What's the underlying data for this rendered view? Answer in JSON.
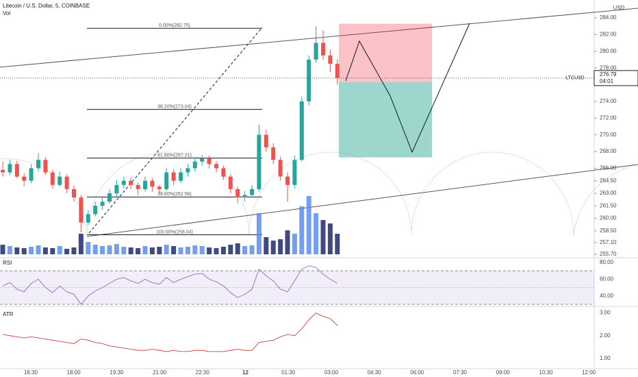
{
  "chart_data": {
    "type": "candlestick",
    "title": "Litecoin / U.S. Dollar, 5, COINBASE",
    "volume_label": "Vol",
    "currency": "USD",
    "symbol": "LTCUSD",
    "last_price": 276.79,
    "countdown": "04:01",
    "colors": {
      "up": "#26a69a",
      "down": "#ef5350",
      "vol_up": "#5b8def",
      "vol_down": "#1c2a6b",
      "rsi": "#7e57c2",
      "atr": "#c62828"
    },
    "ohlc": [
      [
        265.8,
        266.8,
        265.0,
        265.5
      ],
      [
        265.5,
        267.0,
        265.2,
        266.5
      ],
      [
        266.5,
        266.9,
        264.8,
        265.0
      ],
      [
        265.0,
        265.4,
        263.8,
        264.5
      ],
      [
        264.5,
        266.5,
        264.2,
        266.0
      ],
      [
        266.0,
        267.8,
        265.6,
        267.0
      ],
      [
        267.0,
        267.3,
        265.2,
        265.5
      ],
      [
        265.5,
        265.8,
        263.6,
        264.0
      ],
      [
        264.0,
        265.6,
        263.8,
        265.0
      ],
      [
        265.0,
        265.3,
        263.0,
        263.5
      ],
      [
        263.5,
        263.9,
        262.0,
        262.5
      ],
      [
        262.5,
        262.8,
        258.3,
        259.5
      ],
      [
        259.5,
        261.0,
        259.2,
        260.5
      ],
      [
        260.5,
        262.0,
        260.2,
        261.5
      ],
      [
        261.5,
        262.6,
        261.0,
        262.0
      ],
      [
        262.0,
        263.5,
        261.8,
        263.0
      ],
      [
        263.0,
        264.6,
        262.6,
        264.0
      ],
      [
        264.0,
        265.0,
        263.6,
        264.5
      ],
      [
        264.5,
        264.9,
        263.5,
        264.0
      ],
      [
        264.0,
        264.3,
        262.8,
        263.5
      ],
      [
        263.5,
        265.0,
        263.2,
        264.5
      ],
      [
        264.5,
        264.8,
        263.2,
        263.8
      ],
      [
        263.8,
        264.0,
        262.8,
        263.5
      ],
      [
        263.5,
        266.0,
        263.3,
        265.5
      ],
      [
        265.5,
        265.9,
        264.0,
        264.5
      ],
      [
        264.5,
        266.0,
        264.2,
        265.5
      ],
      [
        265.5,
        266.5,
        265.0,
        266.0
      ],
      [
        266.0,
        267.3,
        265.6,
        266.8
      ],
      [
        266.8,
        267.6,
        266.3,
        267.2
      ],
      [
        267.2,
        267.5,
        266.0,
        266.5
      ],
      [
        266.5,
        266.8,
        265.5,
        266.0
      ],
      [
        266.0,
        266.3,
        264.6,
        265.0
      ],
      [
        265.0,
        265.3,
        263.0,
        263.5
      ],
      [
        263.5,
        263.8,
        261.8,
        262.5
      ],
      [
        262.5,
        263.3,
        262.0,
        262.8
      ],
      [
        262.8,
        264.0,
        262.5,
        263.5
      ],
      [
        263.5,
        271.2,
        263.2,
        270.0
      ],
      [
        270.0,
        270.6,
        268.0,
        268.5
      ],
      [
        268.5,
        269.0,
        266.5,
        267.0
      ],
      [
        267.0,
        267.4,
        264.5,
        265.0
      ],
      [
        265.0,
        265.5,
        262.0,
        264.0
      ],
      [
        264.0,
        267.5,
        263.6,
        267.0
      ],
      [
        267.0,
        274.6,
        266.8,
        274.0
      ],
      [
        274.0,
        279.5,
        273.5,
        279.0
      ],
      [
        279.0,
        283.0,
        278.6,
        281.0
      ],
      [
        281.0,
        282.5,
        279.0,
        279.5
      ],
      [
        279.5,
        280.2,
        277.5,
        278.5
      ],
      [
        278.5,
        279.0,
        276.0,
        276.8
      ]
    ],
    "volume": [
      14,
      12,
      10,
      9,
      11,
      13,
      10,
      9,
      12,
      8,
      10,
      30,
      18,
      14,
      12,
      13,
      15,
      11,
      10,
      9,
      12,
      10,
      11,
      14,
      12,
      10,
      11,
      13,
      12,
      10,
      9,
      11,
      14,
      16,
      12,
      13,
      60,
      25,
      20,
      22,
      35,
      30,
      70,
      85,
      60,
      50,
      45,
      30
    ],
    "ylim": [
      255.7,
      284.0
    ],
    "yticks": [
      {
        "value": 284,
        "label": "284.00"
      },
      {
        "value": 282,
        "label": "282.00"
      },
      {
        "value": 280,
        "label": "280.00"
      },
      {
        "value": 278,
        "label": "278.00"
      },
      {
        "value": 274,
        "label": "274.00"
      },
      {
        "value": 272,
        "label": "272.00"
      },
      {
        "value": 270,
        "label": "270.00"
      },
      {
        "value": 268,
        "label": "268.00"
      },
      {
        "value": 266,
        "label": "266.00"
      },
      {
        "value": 264.5,
        "label": "264.50"
      },
      {
        "value": 263,
        "label": "263.00"
      },
      {
        "value": 261.5,
        "label": "261.50"
      },
      {
        "value": 260,
        "label": "260.00"
      },
      {
        "value": 258.5,
        "label": "258.50"
      },
      {
        "value": 257.1,
        "label": "257.10"
      },
      {
        "value": 255.7,
        "label": "255.70"
      }
    ],
    "fib_levels": [
      {
        "value": 282.75,
        "label": "0.00%(282.75)"
      },
      {
        "value": 273.04,
        "label": "38.20%(273.04)"
      },
      {
        "value": 267.21,
        "label": "61.80%(267.21)"
      },
      {
        "value": 262.56,
        "label": "78.60%(262.56)"
      },
      {
        "value": 258.04,
        "label": "100.00%(258.04)"
      }
    ],
    "position": {
      "stop": 283.3,
      "entry": 276.3,
      "target": 267.3
    },
    "rsi_label": "RSI",
    "rsi": [
      52,
      56,
      48,
      45,
      55,
      60,
      50,
      44,
      52,
      45,
      42,
      30,
      40,
      46,
      50,
      55,
      60,
      62,
      58,
      55,
      60,
      56,
      54,
      62,
      56,
      60,
      63,
      66,
      67,
      60,
      57,
      52,
      44,
      38,
      42,
      48,
      72,
      64,
      58,
      48,
      45,
      58,
      72,
      76,
      74,
      66,
      60,
      55
    ],
    "rsi_ylim": [
      30,
      84
    ],
    "rsi_yticks": [
      {
        "value": 80,
        "label": "80.00"
      },
      {
        "value": 60,
        "label": "60.00"
      },
      {
        "value": 40,
        "label": "40.00"
      }
    ],
    "rsi_band": [
      30,
      70
    ],
    "rsi_mid": 50,
    "atr_label": "ATR",
    "atr": [
      2.05,
      2.0,
      1.95,
      1.9,
      1.95,
      1.9,
      1.85,
      1.8,
      1.75,
      1.7,
      1.65,
      1.85,
      1.8,
      1.7,
      1.65,
      1.55,
      1.5,
      1.45,
      1.4,
      1.35,
      1.35,
      1.4,
      1.35,
      1.3,
      1.35,
      1.3,
      1.3,
      1.35,
      1.35,
      1.3,
      1.3,
      1.3,
      1.35,
      1.4,
      1.35,
      1.35,
      1.7,
      1.75,
      1.8,
      1.95,
      2.05,
      2.0,
      2.3,
      2.7,
      3.0,
      2.85,
      2.75,
      2.45
    ],
    "atr_ylim": [
      0.6,
      3.2
    ],
    "atr_yticks": [
      {
        "value": 3,
        "label": "3.00"
      },
      {
        "value": 2,
        "label": "2.00"
      },
      {
        "value": 1,
        "label": "1.00"
      }
    ],
    "x_labels": [
      "16:30",
      "18:00",
      "19:30",
      "21:00",
      "22:30",
      "12",
      "01:30",
      "03:00",
      "04:30",
      "06:00",
      "07:30",
      "09:00",
      "10:30",
      "12:00"
    ]
  }
}
